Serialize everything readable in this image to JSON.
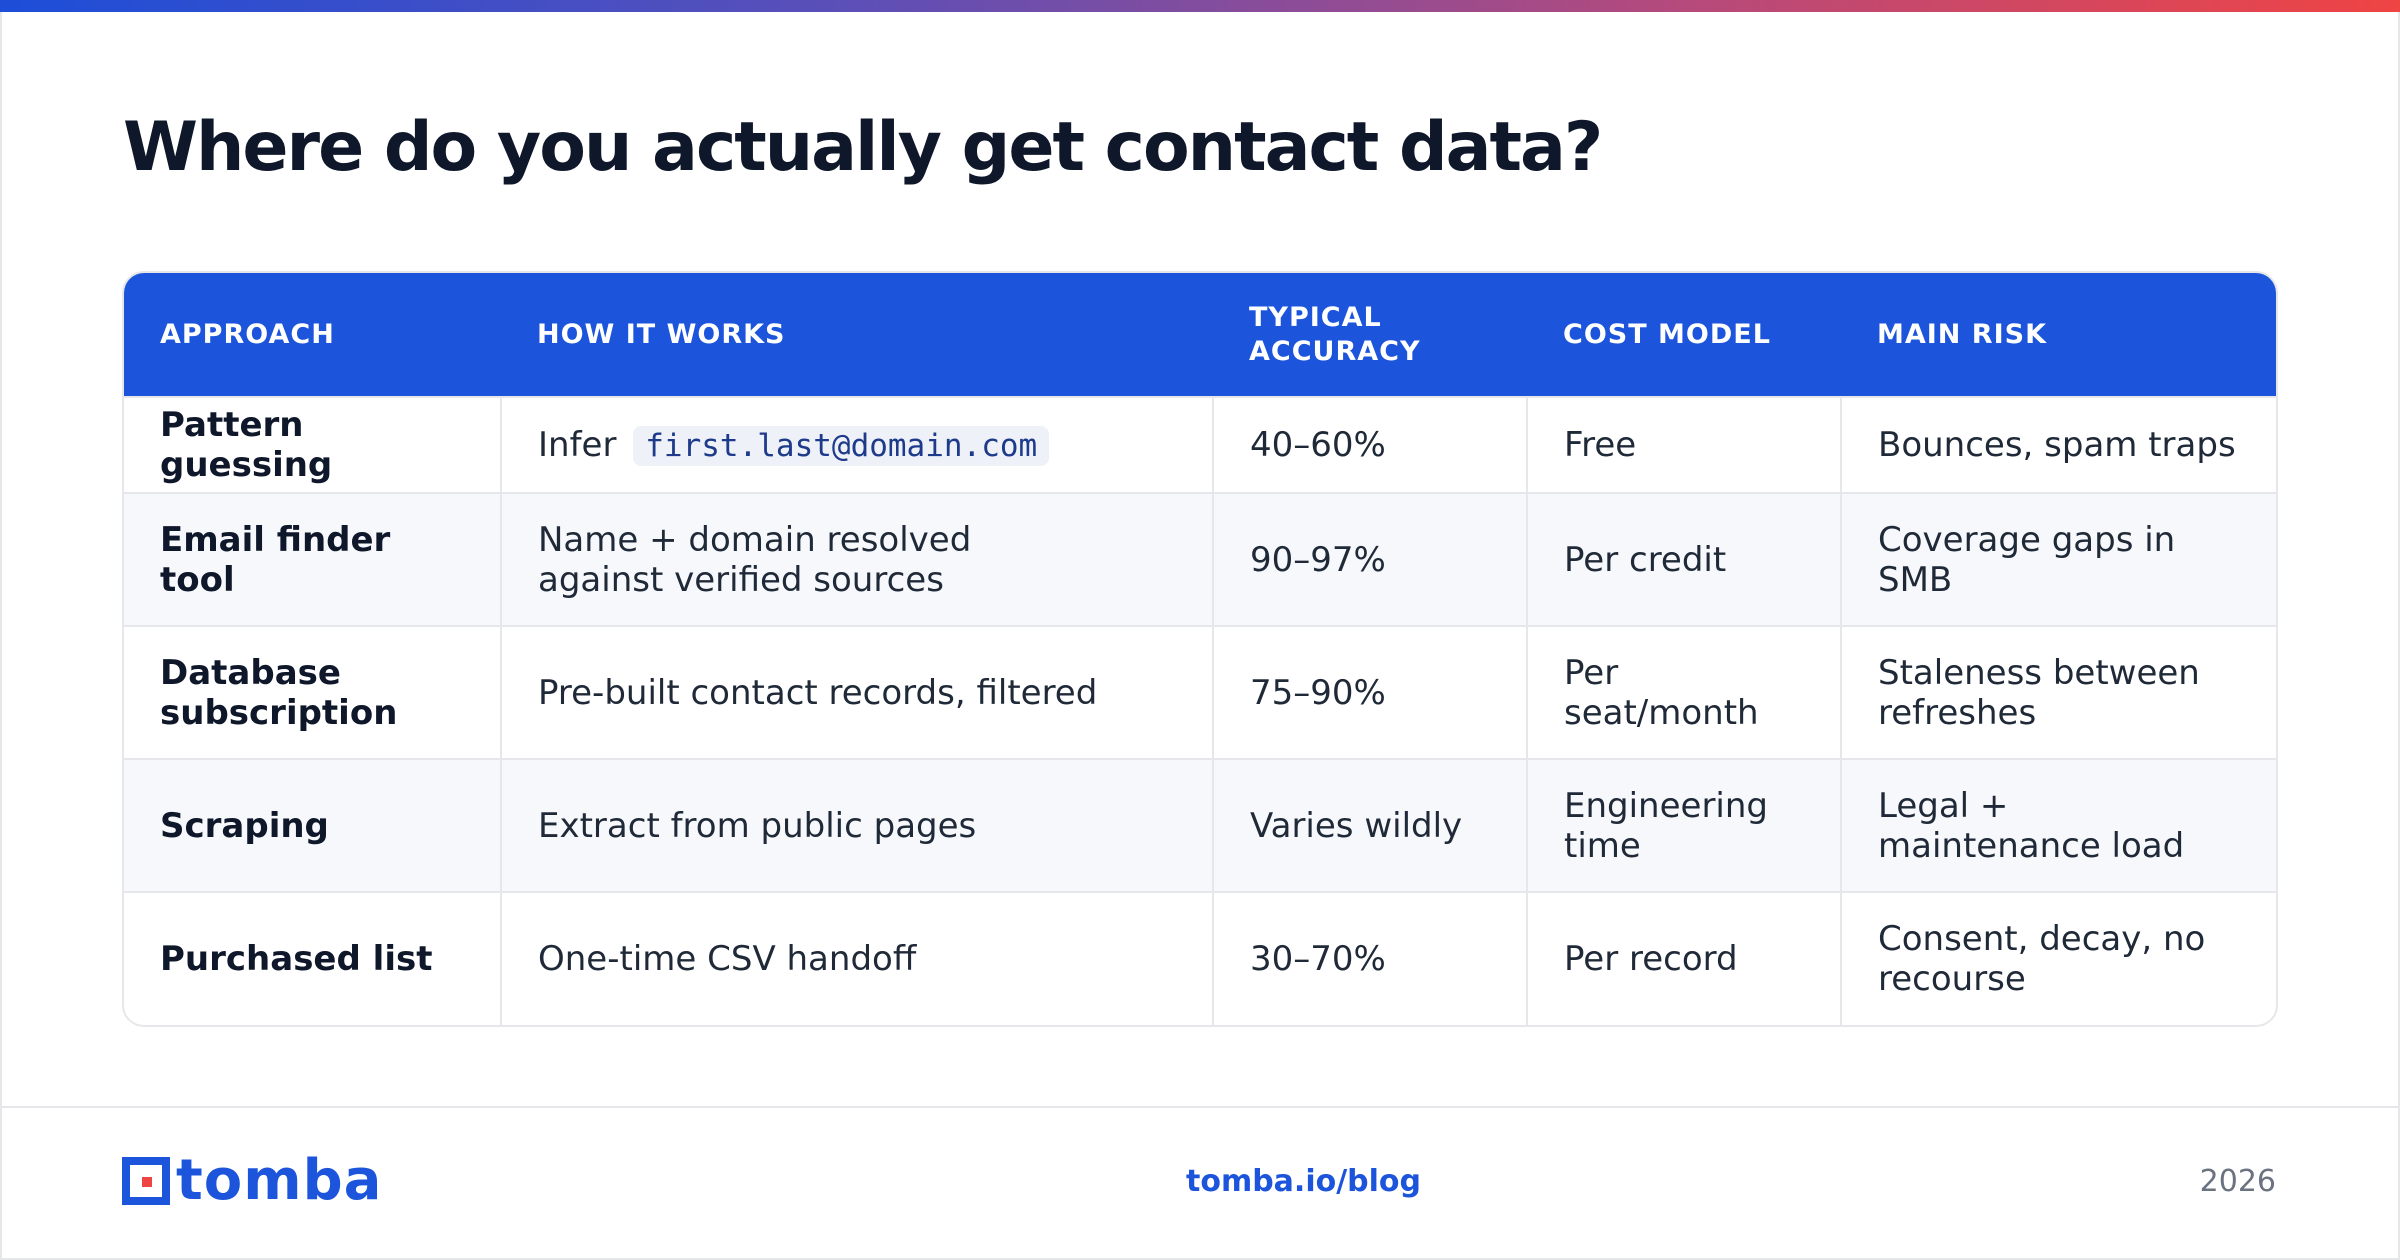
{
  "page": {
    "title": "Where do you actually get contact data?"
  },
  "table": {
    "headers": [
      "APPROACH",
      "HOW IT WORKS",
      "TYPICAL ACCURACY",
      "COST MODEL",
      "MAIN RISK"
    ],
    "rows": [
      {
        "approach": "Pattern guessing",
        "how_prefix": "Infer",
        "how_code": "first.last@domain.com",
        "accuracy": "40–60%",
        "cost": "Free",
        "risk": "Bounces, spam traps"
      },
      {
        "approach": "Email finder tool",
        "how": "Name + domain resolved against verified sources",
        "accuracy": "90–97%",
        "cost": "Per credit",
        "risk": "Coverage gaps in SMB"
      },
      {
        "approach": "Database subscription",
        "how": "Pre-built contact records, filtered",
        "accuracy": "75–90%",
        "cost": "Per seat/month",
        "risk": "Staleness between refreshes"
      },
      {
        "approach": "Scraping",
        "how": "Extract from public pages",
        "accuracy": "Varies wildly",
        "cost": "Engineering time",
        "risk": "Legal + maintenance load"
      },
      {
        "approach": "Purchased list",
        "how": "One-time CSV handoff",
        "accuracy": "30–70%",
        "cost": "Per record",
        "risk": "Consent, decay, no recourse"
      }
    ]
  },
  "footer": {
    "logo_text": "tomba",
    "link": "tomba.io/blog",
    "year": "2026"
  },
  "colors": {
    "accent": "#1c55dc",
    "title": "#0f172a",
    "gradient_start": "#1d4ed8",
    "gradient_end": "#ef4444"
  },
  "icons": {
    "logo_mark": "tomba-logo-icon"
  }
}
